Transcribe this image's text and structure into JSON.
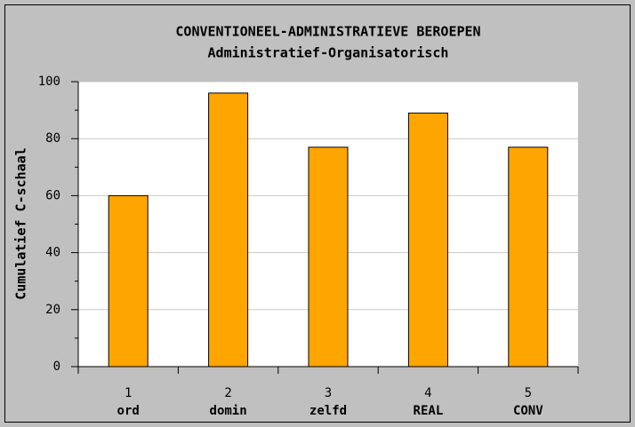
{
  "chart_data": {
    "type": "bar",
    "title": "CONVENTIONEEL-ADMINISTRATIEVE BEROEPEN",
    "subtitle": "Administratief-Organisatorisch",
    "y_label": "Cumulatief C-schaal",
    "category_numbers": [
      1,
      2,
      3,
      4,
      5
    ],
    "categories": [
      "ord",
      "domin",
      "zelfd",
      "REAL",
      "CONV"
    ],
    "values": [
      60,
      96,
      77,
      89,
      77
    ],
    "color": "#ffa500",
    "ylim": [
      0,
      100
    ],
    "yticks": [
      0,
      20,
      40,
      60,
      80,
      100
    ],
    "grid": true
  }
}
